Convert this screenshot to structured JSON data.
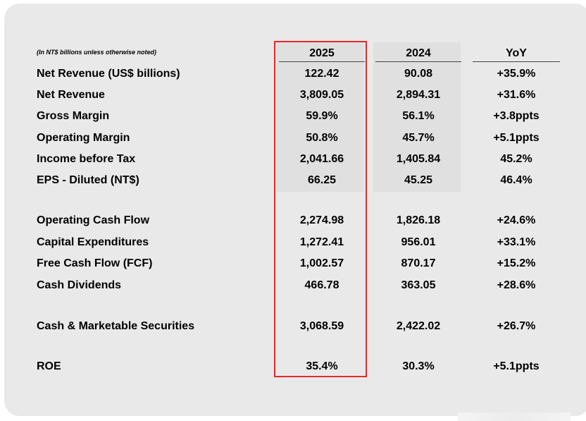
{
  "note": "(In NT$ billions unless otherwise noted)",
  "columns": [
    "2025",
    "2024",
    "YoY"
  ],
  "rows": [
    {
      "label": "Net Revenue (US$ billions)",
      "v2025": "122.42",
      "v2024": "90.08",
      "yoy": "+35.9%"
    },
    {
      "label": "Net Revenue",
      "v2025": "3,809.05",
      "v2024": "2,894.31",
      "yoy": "+31.6%"
    },
    {
      "label": "Gross Margin",
      "v2025": "59.9%",
      "v2024": "56.1%",
      "yoy": "+3.8ppts"
    },
    {
      "label": "Operating Margin",
      "v2025": "50.8%",
      "v2024": "45.7%",
      "yoy": "+5.1ppts"
    },
    {
      "label": "Income before Tax",
      "v2025": "2,041.66",
      "v2024": "1,405.84",
      "yoy": "45.2%"
    },
    {
      "label": "EPS - Diluted (NT$)",
      "v2025": "66.25",
      "v2024": "45.25",
      "yoy": "46.4%"
    },
    {
      "label": "Operating Cash Flow",
      "v2025": "2,274.98",
      "v2024": "1,826.18",
      "yoy": "+24.6%"
    },
    {
      "label": "Capital Expenditures",
      "v2025": "1,272.41",
      "v2024": "956.01",
      "yoy": "+33.1%"
    },
    {
      "label": "Free Cash Flow (FCF)",
      "v2025": "1,002.57",
      "v2024": "870.17",
      "yoy": "+15.2%"
    },
    {
      "label": "Cash Dividends",
      "v2025": "466.78",
      "v2024": "363.05",
      "yoy": "+28.6%"
    },
    {
      "label": "Cash & Marketable Securities",
      "v2025": "3,068.59",
      "v2024": "2,422.02",
      "yoy": "+26.7%"
    },
    {
      "label": "ROE",
      "v2025": "35.4%",
      "v2024": "30.3%",
      "yoy": "+5.1ppts"
    }
  ],
  "colors": {
    "highlight": "#e8292b",
    "panel": "#e9e9e9",
    "column_shade": "#e0e0e0"
  }
}
